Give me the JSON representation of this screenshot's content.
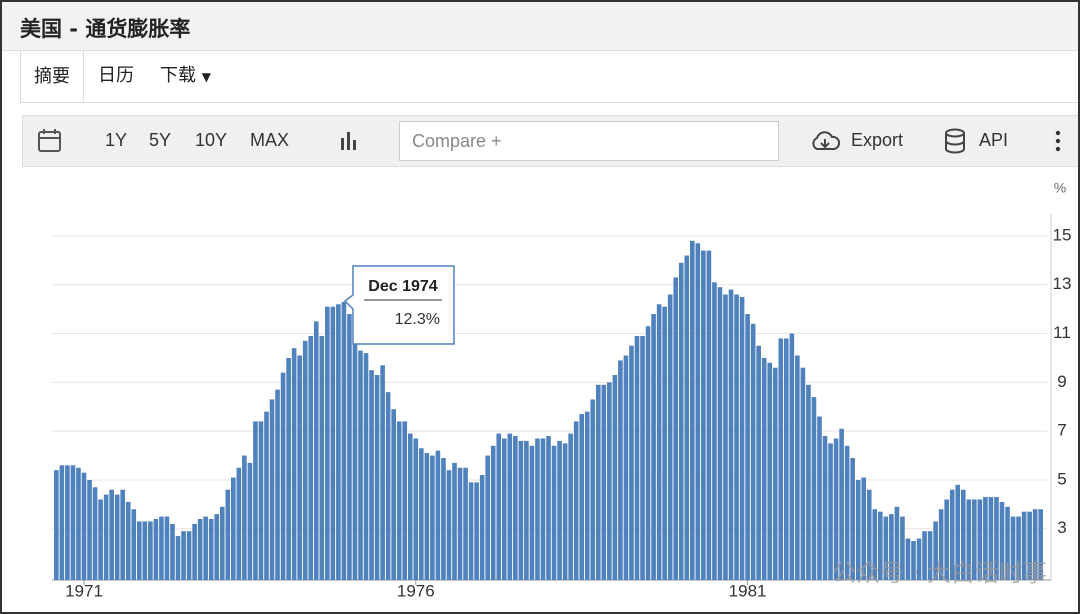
{
  "header": {
    "title": "美国 - 通货膨胀率"
  },
  "tabs": [
    "摘要",
    "日历",
    "下载"
  ],
  "toolbar": {
    "ranges": [
      "1Y",
      "5Y",
      "10Y",
      "MAX"
    ],
    "compare": "Compare +",
    "export": "Export",
    "api": "API"
  },
  "chart_data": {
    "type": "bar",
    "y_unit": "%",
    "color": "#4f81bd",
    "grid": true,
    "ylim": [
      0.9,
      15.9
    ],
    "yticks": [
      3,
      5,
      7,
      9,
      11,
      13,
      15
    ],
    "categories": [
      null,
      null,
      null,
      null,
      null,
      "1971",
      null,
      null,
      null,
      null,
      null,
      null,
      null,
      null,
      null,
      null,
      null,
      null,
      null,
      null,
      null,
      null,
      null,
      null,
      null,
      null,
      null,
      null,
      null,
      null,
      null,
      null,
      null,
      null,
      null,
      null,
      null,
      null,
      null,
      null,
      null,
      null,
      null,
      null,
      null,
      null,
      null,
      null,
      null,
      null,
      null,
      null,
      null,
      null,
      null,
      null,
      null,
      null,
      null,
      null,
      null,
      null,
      null,
      null,
      null,
      "1976",
      null,
      null,
      null,
      null,
      null,
      null,
      null,
      null,
      null,
      null,
      null,
      null,
      null,
      null,
      null,
      null,
      null,
      null,
      null,
      null,
      null,
      null,
      null,
      null,
      null,
      null,
      null,
      null,
      null,
      null,
      null,
      null,
      null,
      null,
      null,
      null,
      null,
      null,
      null,
      null,
      null,
      null,
      null,
      null,
      null,
      null,
      null,
      null,
      null,
      null,
      null,
      null,
      null,
      null,
      null,
      null,
      null,
      null,
      null,
      "1981",
      null,
      null,
      null,
      null,
      null,
      null,
      null,
      null,
      null,
      null,
      null,
      null,
      null,
      null,
      null,
      null,
      null,
      null,
      null,
      null,
      null,
      null,
      null,
      null,
      null,
      null,
      null,
      null,
      null,
      null,
      null,
      null,
      null,
      null,
      null,
      null,
      null,
      null,
      null,
      null,
      null,
      null,
      null,
      null,
      null,
      null,
      null,
      null,
      null,
      null,
      null,
      null,
      null
    ],
    "values": [
      5.4,
      5.6,
      5.6,
      5.6,
      5.5,
      5.3,
      5.0,
      4.7,
      4.2,
      4.4,
      4.6,
      4.4,
      4.6,
      4.1,
      3.8,
      3.3,
      3.3,
      3.3,
      3.4,
      3.5,
      3.5,
      3.2,
      2.7,
      2.9,
      2.9,
      3.2,
      3.4,
      3.5,
      3.4,
      3.6,
      3.9,
      4.6,
      5.1,
      5.5,
      6.0,
      5.7,
      7.4,
      7.4,
      7.8,
      8.3,
      8.7,
      9.4,
      10.0,
      10.4,
      10.1,
      10.7,
      10.9,
      11.5,
      10.9,
      12.1,
      12.1,
      12.2,
      12.3,
      11.8,
      11.2,
      10.3,
      10.2,
      9.5,
      9.3,
      9.7,
      8.6,
      7.9,
      7.4,
      7.4,
      6.9,
      6.7,
      6.3,
      6.1,
      6.0,
      6.2,
      5.9,
      5.4,
      5.7,
      5.5,
      5.5,
      4.9,
      4.9,
      5.2,
      6.0,
      6.4,
      6.9,
      6.7,
      6.9,
      6.8,
      6.6,
      6.6,
      6.4,
      6.7,
      6.7,
      6.8,
      6.4,
      6.6,
      6.5,
      6.9,
      7.4,
      7.7,
      7.8,
      8.3,
      8.9,
      8.9,
      9.0,
      9.3,
      9.9,
      10.1,
      10.5,
      10.9,
      10.9,
      11.3,
      11.8,
      12.2,
      12.1,
      12.6,
      13.3,
      13.9,
      14.2,
      14.8,
      14.7,
      14.4,
      14.4,
      13.1,
      12.9,
      12.6,
      12.8,
      12.6,
      12.5,
      11.8,
      11.4,
      10.5,
      10.0,
      9.8,
      9.6,
      10.8,
      10.8,
      11.0,
      10.1,
      9.6,
      8.9,
      8.4,
      7.6,
      6.8,
      6.5,
      6.7,
      7.1,
      6.4,
      5.9,
      5.0,
      5.1,
      4.6,
      3.8,
      3.7,
      3.5,
      3.6,
      3.9,
      3.5,
      2.6,
      2.5,
      2.6,
      2.9,
      2.9,
      3.3,
      3.8,
      4.2,
      4.6,
      4.8,
      4.6,
      4.2,
      4.2,
      4.2,
      4.3,
      4.3,
      4.3,
      4.1,
      3.9,
      3.5,
      3.5,
      3.7,
      3.7,
      3.8,
      3.8
    ],
    "tooltip": {
      "title": "Dec 1974",
      "text": "12.3%"
    },
    "watermark": "公众号 · 大白话时事"
  }
}
